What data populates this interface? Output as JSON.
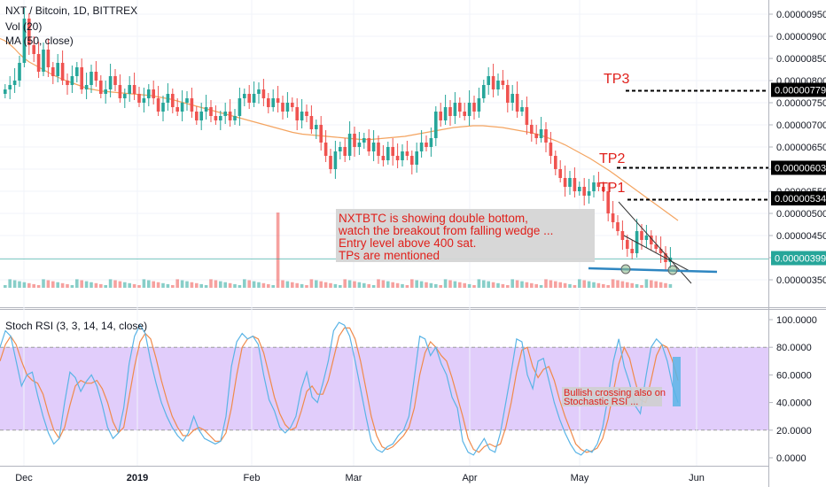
{
  "legend": {
    "symbol": "NXT / Bitcoin, 1D, BITTREX",
    "vol": "Vol (20)",
    "ma": "MA (50, close)",
    "stoch": "Stoch RSI (3, 3, 14, 14, close)"
  },
  "price_axis": {
    "ticks": [
      "0.00000950",
      "0.00000900",
      "0.00000850",
      "0.00000800",
      "0.00000750",
      "0.00000700",
      "0.00000650",
      "0.00000600",
      "0.00000550",
      "0.00000500",
      "0.00000450",
      "0.00000400",
      "0.00000350"
    ]
  },
  "rsi_axis": {
    "ticks": [
      "100.0000",
      "80.0000",
      "60.0000",
      "40.0000",
      "20.0000",
      "0.0000"
    ]
  },
  "time_axis": {
    "labels": [
      "Dec",
      "2019",
      "Feb",
      "Mar",
      "Apr",
      "May",
      "Jun"
    ]
  },
  "price_tags": [
    {
      "label": "0.00000779",
      "value": 7.79,
      "style": "dark"
    },
    {
      "label": "0.00000603",
      "value": 6.03,
      "style": "dark"
    },
    {
      "label": "0.00000534",
      "value": 5.34,
      "style": "dark"
    },
    {
      "label": "0.00000399",
      "value": 3.99,
      "style": "current"
    }
  ],
  "annotations": {
    "tp3": "TP3",
    "tp2": "TP2",
    "tp1": "TP1",
    "note_lines": [
      "NXTBTC is showing double bottom,",
      "watch the breakout from falling wedge ...",
      "Entry level above 400 sat.",
      "TPs are mentioned"
    ],
    "note2_lines": [
      "Bullish crossing also on",
      "Stochastic RSI ..."
    ]
  },
  "colors": {
    "up": "#26a69a",
    "down": "#ef5350",
    "ma": "#f4a460",
    "rsi_k": "#5ab4e6",
    "rsi_d": "#f08a4b",
    "rsi_band": "#e1cdfb",
    "annotation": "#e0201b",
    "trendline": "#2e86c1"
  },
  "chart_data": {
    "type": "candlestick",
    "unit": "BTC (x1e-6)",
    "price_range": [
      3.3,
      9.9
    ],
    "rsi_range": [
      0,
      100
    ],
    "rsi_band": [
      20,
      80
    ],
    "ma_period": 50,
    "ma_start": 8.95,
    "ma_values": [
      8.95,
      8.9,
      8.82,
      8.72,
      8.6,
      8.5,
      8.42,
      8.36,
      8.3,
      8.24,
      8.18,
      8.12,
      8.07,
      8.02,
      7.98,
      7.94,
      7.9,
      7.86,
      7.82,
      7.8,
      7.78,
      7.76,
      7.75,
      7.74,
      7.73,
      7.72,
      7.71,
      7.7,
      7.69,
      7.68,
      7.67,
      7.66,
      7.64,
      7.62,
      7.6,
      7.58,
      7.55,
      7.52,
      7.49,
      7.46,
      7.43,
      7.4,
      7.37,
      7.34,
      7.31,
      7.28,
      7.25,
      7.22,
      7.19,
      7.16,
      7.13,
      7.1,
      7.07,
      7.04,
      7.01,
      6.98,
      6.95,
      6.92,
      6.89,
      6.86,
      6.83,
      6.81,
      6.79,
      6.78,
      6.77,
      6.76,
      6.75,
      6.74,
      6.73,
      6.72,
      6.71,
      6.7,
      6.69,
      6.68,
      6.67,
      6.67,
      6.67,
      6.68,
      6.69,
      6.7,
      6.71,
      6.72,
      6.73,
      6.74,
      6.76,
      6.78,
      6.8,
      6.82,
      6.84,
      6.86,
      6.88,
      6.9,
      6.92,
      6.94,
      6.95,
      6.96,
      6.97,
      6.98,
      6.98,
      6.98,
      6.97,
      6.96,
      6.95,
      6.94,
      6.92,
      6.9,
      6.88,
      6.86,
      6.84,
      6.82,
      6.79,
      6.76,
      6.72,
      6.68,
      6.64,
      6.59,
      6.54,
      6.48,
      6.42,
      6.36,
      6.3,
      6.24,
      6.17,
      6.1,
      6.03,
      5.96,
      5.88,
      5.8,
      5.72,
      5.64,
      5.56,
      5.48,
      5.4,
      5.32,
      5.24,
      5.16,
      5.08,
      5.0,
      4.92,
      4.84
    ],
    "close": [
      7.8,
      7.9,
      8.0,
      8.4,
      9.4,
      8.8,
      8.6,
      8.2,
      8.7,
      8.3,
      8.1,
      8.4,
      8.0,
      7.9,
      8.1,
      8.3,
      7.8,
      7.9,
      8.2,
      8.0,
      7.7,
      7.8,
      8.1,
      7.9,
      7.6,
      7.7,
      7.9,
      7.7,
      7.5,
      7.6,
      7.8,
      7.6,
      7.3,
      7.5,
      7.7,
      7.4,
      7.3,
      7.5,
      7.6,
      7.3,
      7.1,
      7.3,
      7.4,
      7.2,
      7.1,
      7.2,
      7.3,
      7.1,
      7.2,
      7.6,
      7.7,
      7.5,
      7.7,
      7.8,
      7.6,
      7.4,
      7.6,
      7.5,
      7.3,
      7.5,
      7.4,
      7.1,
      7.3,
      7.2,
      6.9,
      7.0,
      6.6,
      6.3,
      6.0,
      6.4,
      6.5,
      6.3,
      6.8,
      6.5,
      6.6,
      6.7,
      6.4,
      6.6,
      6.3,
      6.2,
      6.5,
      6.3,
      6.2,
      6.4,
      6.3,
      6.1,
      6.4,
      6.6,
      6.5,
      6.7,
      7.3,
      7.1,
      7.4,
      7.2,
      7.5,
      7.3,
      7.2,
      7.5,
      7.3,
      7.6,
      7.9,
      8.1,
      7.8,
      8.0,
      7.9,
      7.5,
      7.7,
      7.3,
      7.4,
      7.0,
      6.8,
      6.7,
      6.9,
      6.6,
      6.3,
      6.0,
      5.8,
      5.6,
      5.8,
      5.5,
      5.6,
      5.4,
      5.5,
      5.7,
      5.6,
      5.5,
      5.0,
      4.8,
      4.6,
      4.4,
      4.2,
      4.1,
      4.6,
      4.4,
      4.5,
      4.3,
      4.2,
      4.1,
      3.9,
      4.0
    ],
    "volume_peak_index": 57,
    "rsi_k": [
      80,
      92,
      88,
      70,
      52,
      60,
      62,
      45,
      30,
      18,
      10,
      14,
      40,
      62,
      58,
      48,
      55,
      60,
      52,
      38,
      22,
      14,
      18,
      36,
      68,
      88,
      96,
      90,
      70,
      54,
      40,
      30,
      22,
      16,
      12,
      18,
      30,
      20,
      14,
      12,
      10,
      12,
      30,
      66,
      84,
      90,
      86,
      88,
      82,
      60,
      42,
      34,
      22,
      18,
      22,
      30,
      50,
      62,
      44,
      40,
      54,
      70,
      92,
      98,
      96,
      88,
      70,
      50,
      30,
      12,
      6,
      4,
      8,
      10,
      16,
      20,
      30,
      58,
      88,
      86,
      74,
      80,
      68,
      60,
      44,
      36,
      12,
      4,
      2,
      8,
      14,
      6,
      4,
      18,
      40,
      62,
      86,
      84,
      60,
      50,
      70,
      72,
      56,
      40,
      28,
      18,
      10,
      4,
      2,
      6,
      4,
      10,
      22,
      44,
      70,
      86,
      66,
      54,
      38,
      32,
      58,
      80,
      86,
      82,
      70,
      52,
      40
    ],
    "rsi_d": [
      70,
      82,
      88,
      82,
      70,
      60,
      56,
      54,
      46,
      32,
      20,
      14,
      22,
      38,
      52,
      56,
      54,
      54,
      56,
      50,
      40,
      26,
      18,
      22,
      44,
      66,
      84,
      90,
      86,
      72,
      56,
      42,
      30,
      22,
      16,
      16,
      20,
      22,
      20,
      16,
      12,
      12,
      18,
      36,
      60,
      80,
      86,
      88,
      86,
      76,
      60,
      44,
      32,
      24,
      20,
      22,
      34,
      48,
      52,
      46,
      46,
      56,
      72,
      88,
      94,
      94,
      86,
      70,
      50,
      30,
      16,
      8,
      6,
      8,
      12,
      16,
      22,
      36,
      60,
      76,
      84,
      80,
      74,
      70,
      58,
      44,
      30,
      14,
      6,
      4,
      8,
      10,
      8,
      10,
      22,
      40,
      62,
      78,
      80,
      66,
      58,
      64,
      66,
      56,
      42,
      30,
      20,
      10,
      6,
      4,
      5,
      7,
      14,
      28,
      48,
      68,
      80,
      72,
      56,
      42,
      40,
      56,
      74,
      82,
      80,
      70,
      56
    ]
  }
}
